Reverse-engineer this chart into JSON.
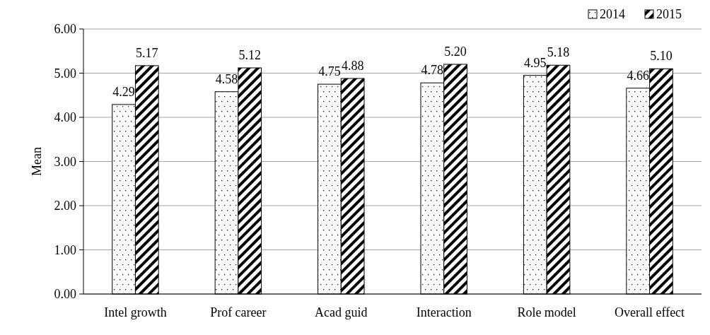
{
  "chart_data": {
    "type": "bar",
    "ylabel": "Mean",
    "categories": [
      "Intel growth",
      "Prof career",
      "Acad guid",
      "Interaction",
      "Role model",
      "Overall effect"
    ],
    "series": [
      {
        "name": "2014",
        "color": "#ffffff",
        "values": [
          4.29,
          4.58,
          4.75,
          4.78,
          4.95,
          4.66
        ],
        "value_labels": [
          "4.29",
          "4.58",
          "4.75",
          "4.78",
          "4.95",
          "4.66"
        ]
      },
      {
        "name": "2015",
        "color": "#ffffff",
        "values": [
          5.17,
          5.12,
          4.88,
          5.2,
          5.18,
          5.1
        ],
        "value_labels": [
          "5.17",
          "5.12",
          "4.88",
          "5.20",
          "5.18",
          "5.10"
        ]
      }
    ],
    "ylim": [
      0,
      6
    ],
    "yticks": [
      {
        "value": 0,
        "label": "0.00"
      },
      {
        "value": 1,
        "label": "1.00"
      },
      {
        "value": 2,
        "label": "2.00"
      },
      {
        "value": 3,
        "label": "3.00"
      },
      {
        "value": 4,
        "label": "4.00"
      },
      {
        "value": 5,
        "label": "5.00"
      },
      {
        "value": 6,
        "label": "6.00"
      }
    ],
    "grid": "y",
    "legend": "top right"
  }
}
